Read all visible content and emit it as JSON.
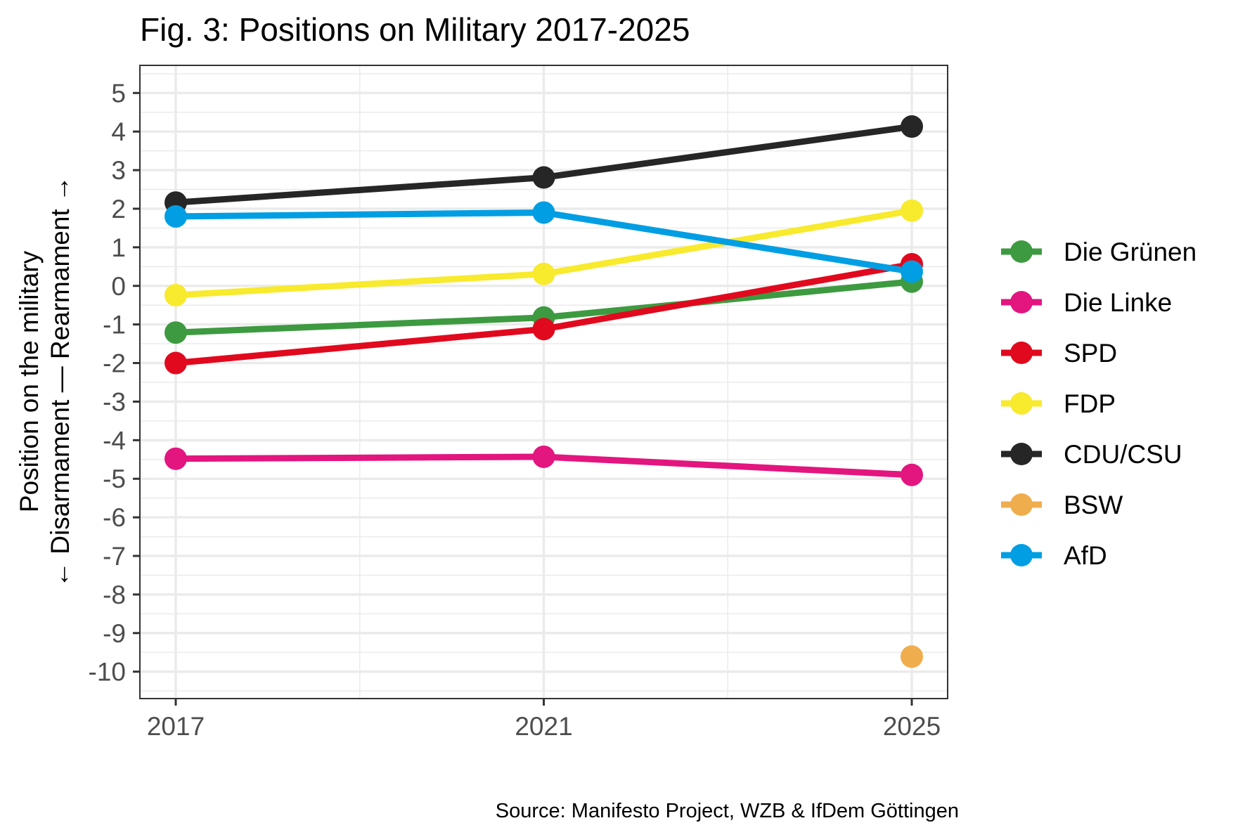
{
  "chart_data": {
    "type": "line",
    "title": "Fig. 3: Positions on Military 2017-2025",
    "ylabel_line1": "Position on the military",
    "ylabel_line2": "← Disarmament — Rearmament →",
    "xlabel": "",
    "caption": "Source: Manifesto Project, WZB & IfDem Göttingen",
    "x": [
      2017,
      2021,
      2025
    ],
    "x_tick_labels": [
      "2017",
      "2021",
      "2025"
    ],
    "xlim": [
      2016.8,
      2025.4
    ],
    "ylim": [
      -10.75,
      5.75
    ],
    "y_ticks": [
      5,
      4,
      3,
      2,
      1,
      0,
      -1,
      -2,
      -3,
      -4,
      -5,
      -6,
      -7,
      -8,
      -9,
      -10
    ],
    "y_tick_labels": [
      "5",
      "4",
      "3",
      "2",
      "1",
      "0",
      "-1",
      "-2",
      "-3",
      "-4",
      "-5",
      "-6",
      "-7",
      "-8",
      "-9",
      "-10"
    ],
    "grid": true,
    "legend_position": "right",
    "series": [
      {
        "name": "Die Grünen",
        "color": "#3d9a40",
        "values": [
          -1.21,
          -0.82,
          0.11
        ]
      },
      {
        "name": "Die Linke",
        "color": "#e3157f",
        "values": [
          -4.48,
          -4.43,
          -4.9
        ]
      },
      {
        "name": "SPD",
        "color": "#e1091e",
        "values": [
          -2.0,
          -1.12,
          0.56
        ]
      },
      {
        "name": "FDP",
        "color": "#f8ea2d",
        "values": [
          -0.24,
          0.31,
          1.95
        ]
      },
      {
        "name": "CDU/CSU",
        "color": "#262626",
        "values": [
          2.16,
          2.81,
          4.13
        ]
      },
      {
        "name": "BSW",
        "color": "#f0ad4e",
        "values": [
          null,
          null,
          -9.61
        ]
      },
      {
        "name": "AfD",
        "color": "#019ee3",
        "values": [
          1.8,
          1.9,
          0.37
        ]
      }
    ]
  }
}
